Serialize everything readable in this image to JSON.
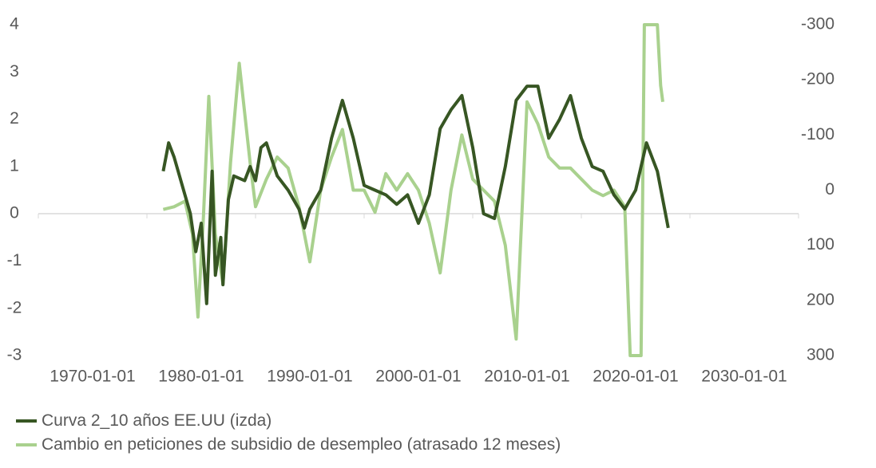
{
  "chart_data": {
    "type": "line",
    "title": "",
    "x_range": [
      1965,
      2035
    ],
    "x_ticks": [
      "1970-01-01",
      "1980-01-01",
      "1990-01-01",
      "2000-01-01",
      "2010-01-01",
      "2020-01-01",
      "2030-01-01"
    ],
    "x_tick_years": [
      1970,
      1980,
      1990,
      2000,
      2010,
      2020,
      2030
    ],
    "y_left": {
      "range": [
        -3,
        4
      ],
      "ticks": [
        "4",
        "3",
        "2",
        "1",
        "0",
        "-1",
        "-2",
        "-3"
      ],
      "tick_values": [
        4,
        3,
        2,
        1,
        0,
        -1,
        -2,
        -3
      ]
    },
    "y_right": {
      "range": [
        -300,
        300
      ],
      "inverted": true,
      "ticks": [
        "-300",
        "-200",
        "-100",
        "0",
        "100",
        "200",
        "300"
      ],
      "tick_values": [
        -300,
        -200,
        -100,
        0,
        100,
        200,
        300
      ]
    },
    "grid": false,
    "legend_position": "bottom-left",
    "series": [
      {
        "name": "Curva 2_10 años EE.UU (izda)",
        "axis": "left",
        "color": "#375623",
        "x": [
          1976.5,
          1977,
          1977.5,
          1978,
          1978.5,
          1979,
          1979.5,
          1980,
          1980.5,
          1981,
          1981.3,
          1981.8,
          1982,
          1982.5,
          1983,
          1984,
          1984.5,
          1985,
          1985.5,
          1986,
          1987,
          1988,
          1989,
          1989.5,
          1990,
          1991,
          1992,
          1993,
          1994,
          1995,
          1996,
          1997,
          1998,
          1999,
          2000,
          2001,
          2002,
          2003,
          2004,
          2005,
          2006,
          2007,
          2008,
          2009,
          2010,
          2011,
          2012,
          2013,
          2014,
          2015,
          2016,
          2017,
          2018,
          2019,
          2020,
          2021,
          2022,
          2023
        ],
        "values": [
          0.9,
          1.5,
          1.2,
          0.8,
          0.4,
          0,
          -0.8,
          -0.2,
          -1.9,
          0.9,
          -1.3,
          -0.5,
          -1.5,
          0.3,
          0.8,
          0.7,
          1.0,
          0.7,
          1.4,
          1.5,
          0.8,
          0.5,
          0.1,
          -0.3,
          0.1,
          0.5,
          1.6,
          2.4,
          1.6,
          0.6,
          0.5,
          0.4,
          0.2,
          0.4,
          -0.2,
          0.4,
          1.8,
          2.2,
          2.5,
          1.4,
          0,
          -0.1,
          1.0,
          2.4,
          2.7,
          2.7,
          1.6,
          2.0,
          2.5,
          1.6,
          1.0,
          0.9,
          0.4,
          0.1,
          0.5,
          1.5,
          0.9,
          -0.3
        ]
      },
      {
        "name": "Cambio en peticiones de subsidio de desempleo (atrasado 12 meses)",
        "axis": "right",
        "color": "#a9d18e",
        "x": [
          1976.5,
          1977.5,
          1978.5,
          1979.2,
          1979.7,
          1980.2,
          1980.7,
          1981.3,
          1982,
          1982.7,
          1983.5,
          1984.5,
          1985,
          1986,
          1987,
          1988,
          1989,
          1990,
          1991,
          1992,
          1993,
          1994,
          1995,
          1996,
          1997,
          1998,
          1999,
          2000,
          2001,
          2002,
          2003,
          2004,
          2005,
          2006,
          2007,
          2008,
          2009,
          2010,
          2011,
          2012,
          2013,
          2014,
          2015,
          2016,
          2017,
          2018,
          2019,
          2019.5,
          2020.5,
          2020.8,
          2022,
          2022.3,
          2022.5
        ],
        "values": [
          35,
          30,
          20,
          80,
          230,
          50,
          -170,
          80,
          170,
          -50,
          -230,
          -50,
          30,
          -20,
          -60,
          -40,
          30,
          130,
          0,
          -60,
          -110,
          0,
          0,
          40,
          -30,
          0,
          -30,
          0,
          60,
          150,
          0,
          -100,
          -20,
          0,
          20,
          100,
          270,
          -160,
          -120,
          -60,
          -40,
          -40,
          -20,
          0,
          10,
          0,
          30,
          300,
          300,
          -300,
          -300,
          -190,
          -160
        ]
      }
    ]
  }
}
